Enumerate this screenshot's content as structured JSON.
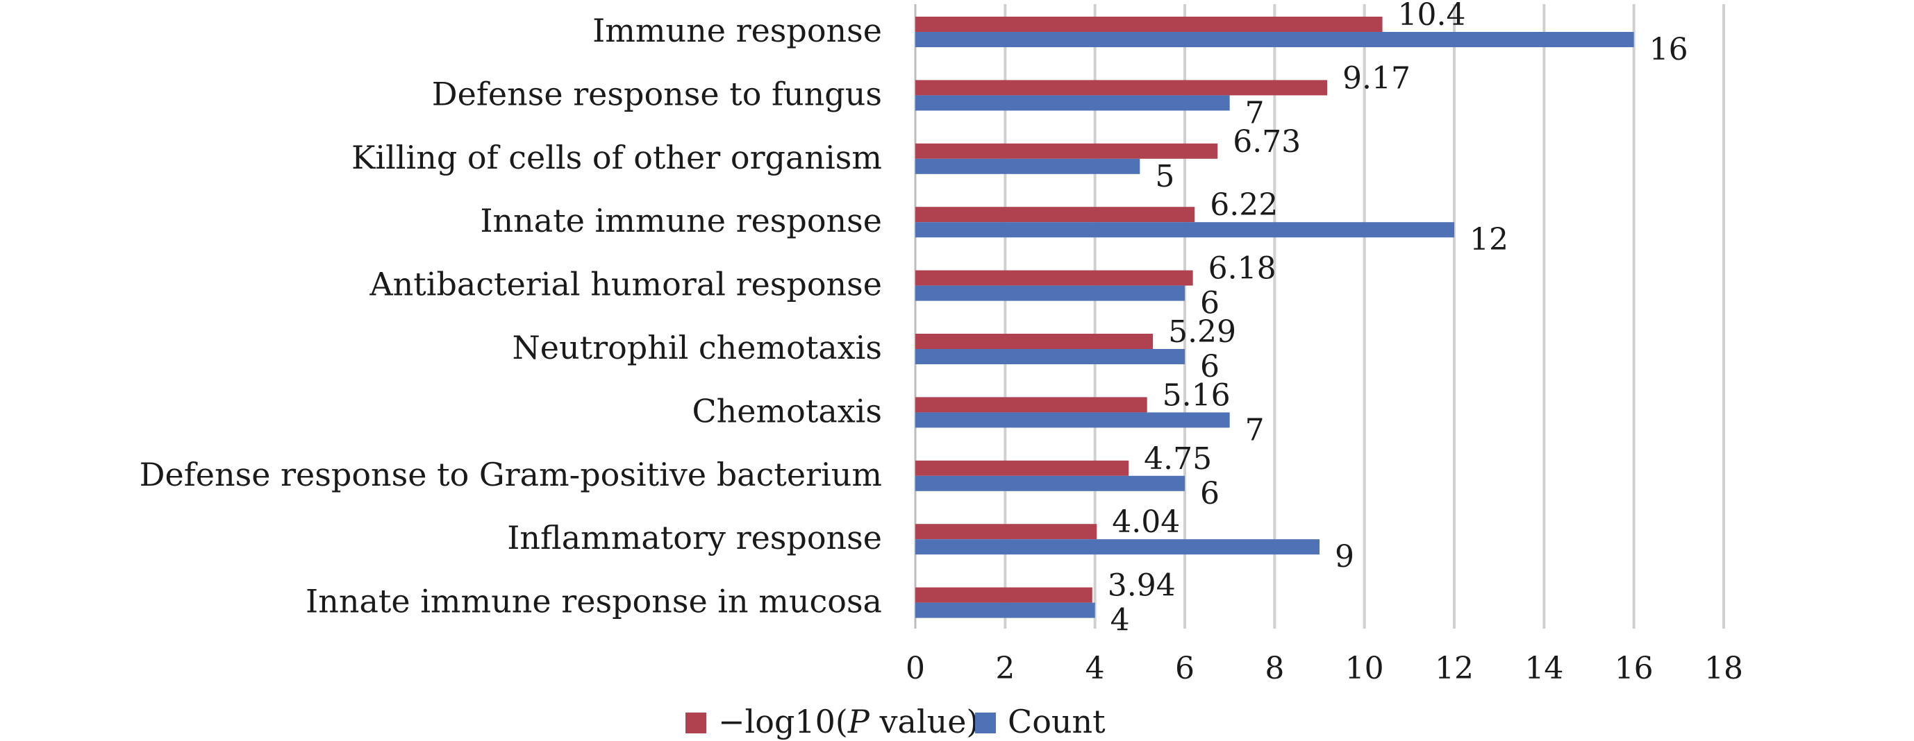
{
  "chart_data": {
    "type": "bar",
    "orientation": "horizontal",
    "categories": [
      "Immune response",
      "Defense response to fungus",
      "Killing of cells of other organism",
      "Innate immune response",
      "Antibacterial humoral response",
      "Neutrophil chemotaxis",
      "Chemotaxis",
      "Defense response to Gram-positive bacterium",
      "Inflammatory response",
      "Innate immune response in mucosa"
    ],
    "series": [
      {
        "name": "−log10(P value)",
        "color": "#b0414f",
        "values": [
          10.4,
          9.17,
          6.73,
          6.22,
          6.18,
          5.29,
          5.16,
          4.75,
          4.04,
          3.94
        ],
        "labels": [
          "10.4",
          "9.17",
          "6.73",
          "6.22",
          "6.18",
          "5.29",
          "5.16",
          "4.75",
          "4.04",
          "3.94"
        ]
      },
      {
        "name": "Count",
        "color": "#4e72b5",
        "values": [
          16,
          7,
          5,
          12,
          6,
          6,
          7,
          6,
          9,
          4
        ],
        "labels": [
          "16",
          "7",
          "5",
          "12",
          "6",
          "6",
          "7",
          "6",
          "9",
          "4"
        ]
      }
    ],
    "xlim": [
      0,
      18
    ],
    "xticks": [
      "0",
      "2",
      "4",
      "6",
      "8",
      "10",
      "12",
      "14",
      "16",
      "18"
    ],
    "grid": true,
    "legend_position": "bottom"
  }
}
